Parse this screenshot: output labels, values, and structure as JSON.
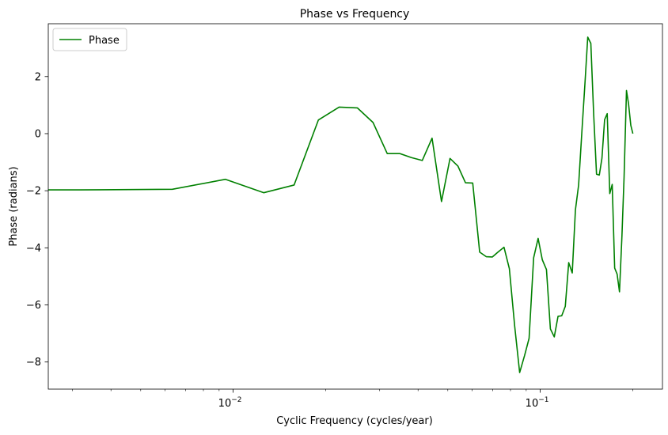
{
  "chart_data": {
    "type": "line",
    "title": "Phase vs Frequency",
    "xlabel": "Cyclic Frequency (cycles/year)",
    "ylabel": "Phase (radians)",
    "xscale": "log",
    "xlim": [
      0.0025,
      0.25
    ],
    "ylim": [
      -8.95,
      3.85
    ],
    "x_ticks": [
      {
        "value": 0.01,
        "base": "10",
        "exp": "−2"
      },
      {
        "value": 0.1,
        "base": "10",
        "exp": "−1"
      }
    ],
    "y_ticks": [
      {
        "value": 2,
        "label": "2"
      },
      {
        "value": 0,
        "label": "0"
      },
      {
        "value": -2,
        "label": "−2"
      },
      {
        "value": -4,
        "label": "−4"
      },
      {
        "value": -6,
        "label": "−6"
      },
      {
        "value": -8,
        "label": "−8"
      }
    ],
    "grid": false,
    "legend_position": "top-left",
    "series": [
      {
        "name": "Phase",
        "color": "#008000",
        "x": [
          0.0025,
          0.00317,
          0.00634,
          0.00944,
          0.01257,
          0.01579,
          0.01895,
          0.02213,
          0.02539,
          0.02854,
          0.03175,
          0.03494,
          0.03805,
          0.04128,
          0.04443,
          0.04769,
          0.05083,
          0.05396,
          0.05708,
          0.06027,
          0.06349,
          0.06669,
          0.06983,
          0.07302,
          0.07619,
          0.07932,
          0.08254,
          0.08569,
          0.08892,
          0.09197,
          0.09516,
          0.09841,
          0.10156,
          0.10476,
          0.10789,
          0.11108,
          0.11425,
          0.11746,
          0.12065,
          0.12379,
          0.12711,
          0.13018,
          0.13333,
          0.13661,
          0.13976,
          0.14278,
          0.14612,
          0.14924,
          0.15249,
          0.15571,
          0.15882,
          0.16202,
          0.16521,
          0.16842,
          0.17152,
          0.17471,
          0.17793,
          0.18113,
          0.18445,
          0.18749,
          0.19089,
          0.19383,
          0.19718,
          0.20025
        ],
        "y": [
          -1.97,
          -1.97,
          -1.95,
          -1.6,
          -2.07,
          -1.8,
          0.48,
          0.93,
          0.9,
          0.39,
          -0.7,
          -0.7,
          -0.84,
          -0.94,
          -0.16,
          -2.38,
          -0.87,
          -1.14,
          -1.72,
          -1.73,
          -4.15,
          -4.31,
          -4.32,
          -4.14,
          -3.98,
          -4.73,
          -6.74,
          -8.37,
          -7.77,
          -7.17,
          -4.35,
          -3.67,
          -4.42,
          -4.76,
          -6.84,
          -7.12,
          -6.4,
          -6.38,
          -6.05,
          -4.52,
          -4.88,
          -2.67,
          -1.8,
          0.06,
          1.73,
          3.38,
          3.16,
          0.69,
          -1.42,
          -1.45,
          -0.86,
          0.49,
          0.7,
          -2.1,
          -1.78,
          -4.71,
          -4.92,
          -5.54,
          -3.62,
          -1.52,
          1.51,
          1.05,
          0.29,
          0.0
        ]
      }
    ]
  }
}
